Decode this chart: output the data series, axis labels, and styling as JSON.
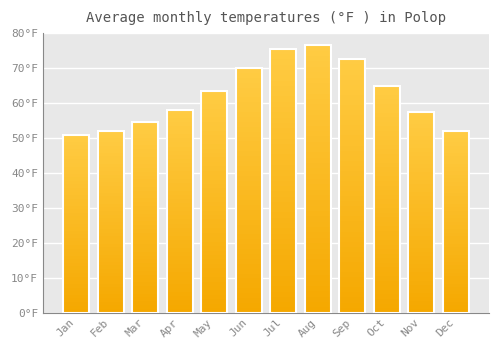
{
  "title": "Average monthly temperatures (°F ) in Polop",
  "months": [
    "Jan",
    "Feb",
    "Mar",
    "Apr",
    "May",
    "Jun",
    "Jul",
    "Aug",
    "Sep",
    "Oct",
    "Nov",
    "Dec"
  ],
  "values": [
    51,
    52,
    54.5,
    58,
    63.5,
    70,
    75.5,
    76.5,
    72.5,
    65,
    57.5,
    52
  ],
  "bar_color_top": "#FFCC33",
  "bar_color_bottom": "#F5A800",
  "bar_edge_color": "#FFFFFF",
  "plot_bg_color": "#E8E8E8",
  "outer_bg_color": "#FFFFFF",
  "grid_color": "#FFFFFF",
  "text_color": "#888888",
  "title_color": "#555555",
  "ylim": [
    0,
    80
  ],
  "yticks": [
    0,
    10,
    20,
    30,
    40,
    50,
    60,
    70,
    80
  ],
  "ytick_labels": [
    "0°F",
    "10°F",
    "20°F",
    "30°F",
    "40°F",
    "50°F",
    "60°F",
    "70°F",
    "80°F"
  ],
  "title_fontsize": 10,
  "tick_fontsize": 8
}
